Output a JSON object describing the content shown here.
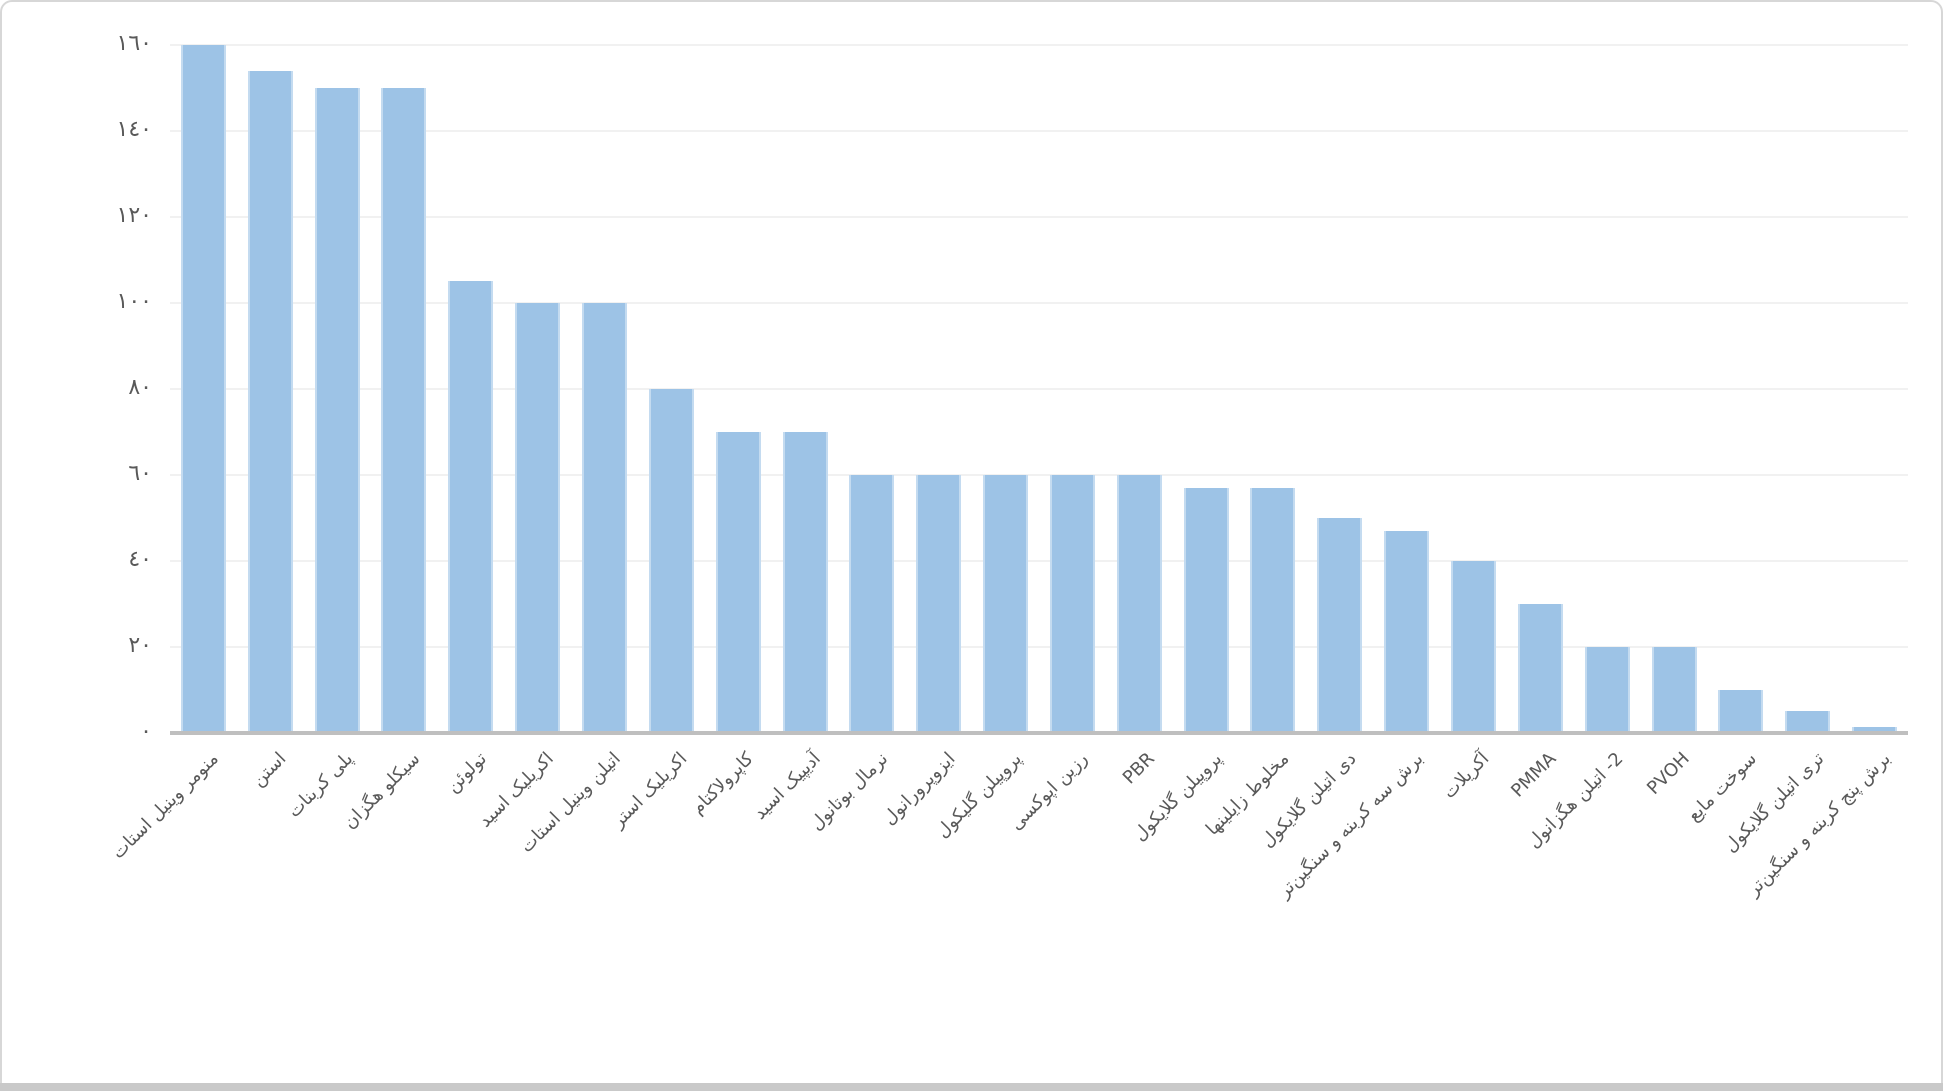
{
  "chart_data": {
    "type": "bar",
    "title": "",
    "xlabel": "",
    "ylabel": "",
    "categories": [
      "منومر وینیل استات",
      "استن",
      "پلی کربنات",
      "سیکلو هگزان",
      "تولوئن",
      "اکریلیک اسید",
      "اتیلن وینیل استات",
      "اکریلیک استر",
      "کاپرولاکتام",
      "آدیپیک اسید",
      "نرمال بوتانول",
      "ایزوپرورانول",
      "پروپیلن گلیکول",
      "رزین اپوکسی",
      "PBR",
      "پروپیلن گلایکول",
      "مخلوط زایلینها",
      "دی اتیلن گلایکول",
      "برش سه کربنه و سنگین‌تر",
      "آکریلات",
      "PMMA",
      "2- اتیلن هگزانول",
      "PVOH",
      "سوخت مایع",
      "تری اتیلن گلایکول",
      "برش پنج کربنه و سنگین‌تر"
    ],
    "values": [
      160,
      154,
      150,
      150,
      105,
      100,
      100,
      80,
      70,
      70,
      60,
      60,
      60,
      60,
      60,
      57,
      57,
      50,
      47,
      40,
      30,
      20,
      20,
      10,
      5,
      1.5
    ],
    "ylim": [
      0,
      160
    ],
    "ytick_step": 20,
    "ytick_labels": [
      "٠",
      "٢٠",
      "٤٠",
      "٦٠",
      "٨٠",
      "١٠٠",
      "١٢٠",
      "١٤٠",
      "١٦٠"
    ],
    "grid": true,
    "legend": "none",
    "bar_color": "#9DC3E6",
    "grid_color": "#f1f1f1",
    "axis_color": "#bfbfbf",
    "label_color": "#595959"
  }
}
